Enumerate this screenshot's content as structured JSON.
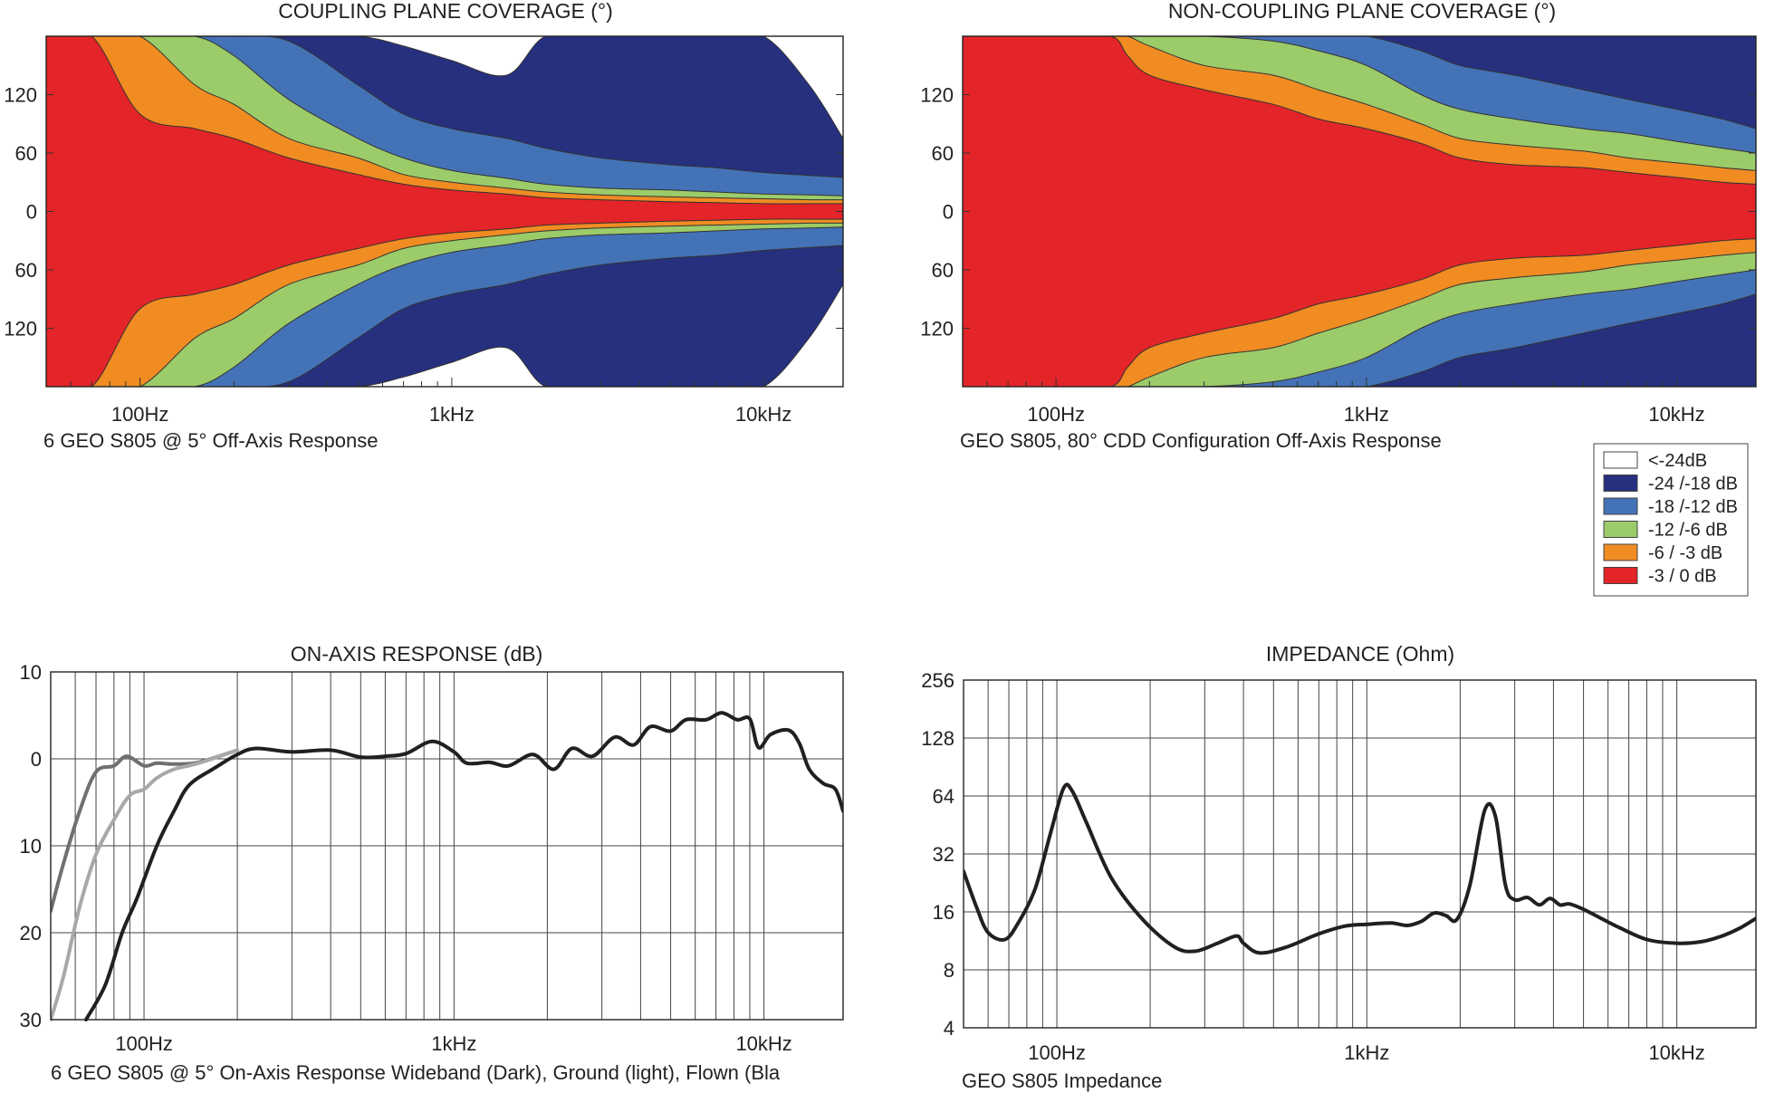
{
  "colors": {
    "white": "#ffffff",
    "navy": "#26307f",
    "blue": "#4472b7",
    "green": "#9ccb69",
    "orange": "#f08c22",
    "red": "#e32428",
    "curve_dark": "#231f20",
    "curve_mid": "#707070",
    "curve_light": "#a8a8a8",
    "grid": "#444444"
  },
  "chart_data": [
    {
      "type": "heatmap",
      "title": "COUPLING PLANE COVERAGE (°)",
      "caption": "6 GEO S805 @ 5°  Off-Axis Response",
      "x_scale": "log",
      "x_range_hz": [
        50,
        18000
      ],
      "xticks": [
        {
          "hz": 100,
          "label": "100Hz"
        },
        {
          "hz": 1000,
          "label": "1kHz"
        },
        {
          "hz": 10000,
          "label": "10kHz"
        }
      ],
      "y_range_deg": [
        -180,
        180
      ],
      "yticks": [
        {
          "deg": 120,
          "label": "120"
        },
        {
          "deg": 60,
          "label": "60"
        },
        {
          "deg": 0,
          "label": "0"
        },
        {
          "deg": -60,
          "label": "60"
        },
        {
          "deg": -120,
          "label": "120"
        }
      ],
      "contours": {
        "freq_hz": [
          50,
          70,
          100,
          150,
          200,
          300,
          500,
          700,
          1000,
          1500,
          2000,
          3000,
          5000,
          7000,
          10000,
          14000,
          18000
        ],
        "bands": [
          {
            "name": "-6 / -3 dB",
            "deg": [
              180,
              180,
              100,
              85,
              75,
              55,
              38,
              28,
              22,
              18,
              14,
              12,
              10,
              9,
              8,
              8,
              8
            ]
          },
          {
            "name": "-12 /-6 dB",
            "deg": [
              180,
              180,
              180,
              130,
              110,
              75,
              55,
              38,
              30,
              24,
              20,
              17,
              15,
              14,
              13,
              12,
              12
            ]
          },
          {
            "name": "-18 /-12 dB",
            "deg": [
              180,
              180,
              180,
              180,
              160,
              115,
              75,
              55,
              42,
              34,
              28,
              24,
              22,
              20,
              18,
              17,
              16
            ]
          },
          {
            "name": "-24 /-18 dB",
            "deg": [
              180,
              180,
              180,
              180,
              180,
              175,
              130,
              100,
              85,
              75,
              65,
              55,
              48,
              45,
              40,
              37,
              35
            ]
          },
          {
            "name": "<-24dB",
            "deg": [
              180,
              180,
              180,
              180,
              180,
              180,
              180,
              170,
              155,
              140,
              180,
              180,
              180,
              180,
              180,
              130,
              75
            ]
          }
        ]
      }
    },
    {
      "type": "heatmap",
      "title": "NON-COUPLING PLANE COVERAGE (°)",
      "caption": "GEO S805, 80°  CDD Configuration Off-Axis Response",
      "x_scale": "log",
      "x_range_hz": [
        50,
        18000
      ],
      "xticks": [
        {
          "hz": 100,
          "label": "100Hz"
        },
        {
          "hz": 1000,
          "label": "1kHz"
        },
        {
          "hz": 10000,
          "label": "10kHz"
        }
      ],
      "y_range_deg": [
        -180,
        180
      ],
      "yticks": [
        {
          "deg": 120,
          "label": "120"
        },
        {
          "deg": 60,
          "label": "60"
        },
        {
          "deg": 0,
          "label": "0"
        },
        {
          "deg": -60,
          "label": "60"
        },
        {
          "deg": -120,
          "label": "120"
        }
      ],
      "contours": {
        "freq_hz": [
          50,
          100,
          150,
          170,
          200,
          300,
          500,
          700,
          1000,
          1500,
          2000,
          3000,
          5000,
          7000,
          10000,
          14000,
          18000
        ],
        "bands": [
          {
            "name": "-6 / -3 dB",
            "deg": [
              180,
              180,
              180,
              160,
              140,
              125,
              110,
              95,
              85,
              70,
              55,
              48,
              45,
              40,
              35,
              30,
              28
            ]
          },
          {
            "name": "-12 /-6 dB",
            "deg": [
              180,
              180,
              180,
              180,
              170,
              150,
              140,
              125,
              110,
              90,
              75,
              68,
              62,
              55,
              50,
              45,
              42
            ]
          },
          {
            "name": "-18 /-12 dB",
            "deg": [
              180,
              180,
              180,
              180,
              180,
              180,
              175,
              165,
              150,
              120,
              105,
              95,
              85,
              80,
              72,
              65,
              60
            ]
          },
          {
            "name": "-24 /-18 dB",
            "deg": [
              180,
              180,
              180,
              180,
              180,
              180,
              180,
              180,
              180,
              165,
              150,
              140,
              125,
              115,
              105,
              95,
              85
            ]
          }
        ]
      }
    },
    {
      "type": "line",
      "title": "ON-AXIS RESPONSE (dB)",
      "caption": "6 GEO S805 @ 5°  On-Axis Response Wideband (Dark), Ground (light), Flown (Bla",
      "x_scale": "log",
      "x_range_hz": [
        50,
        18000
      ],
      "xticks": [
        {
          "hz": 100,
          "label": "100Hz"
        },
        {
          "hz": 1000,
          "label": "1kHz"
        },
        {
          "hz": 10000,
          "label": "10kHz"
        }
      ],
      "y_range": [
        -30,
        10
      ],
      "yticks": [
        {
          "v": 10,
          "label": "10"
        },
        {
          "v": 0,
          "label": "0"
        },
        {
          "v": -10,
          "label": "10"
        },
        {
          "v": -20,
          "label": "20"
        },
        {
          "v": -30,
          "label": "30"
        }
      ],
      "series": [
        {
          "color_key": "curve_mid",
          "points": [
            [
              50,
              -17.5
            ],
            [
              55,
              -12
            ],
            [
              62,
              -6
            ],
            [
              70,
              -1.5
            ],
            [
              80,
              -0.8
            ],
            [
              88,
              0.3
            ],
            [
              100,
              -0.8
            ],
            [
              110,
              -0.5
            ],
            [
              125,
              -0.6
            ],
            [
              150,
              -0.4
            ],
            [
              200,
              1
            ]
          ]
        },
        {
          "color_key": "curve_light",
          "points": [
            [
              50,
              -30
            ],
            [
              55,
              -25
            ],
            [
              62,
              -17
            ],
            [
              70,
              -11
            ],
            [
              80,
              -7
            ],
            [
              90,
              -4.2
            ],
            [
              100,
              -3.5
            ],
            [
              110,
              -2.2
            ],
            [
              125,
              -1.2
            ],
            [
              150,
              -0.5
            ],
            [
              200,
              1
            ]
          ]
        },
        {
          "color_key": "curve_dark",
          "points": [
            [
              65,
              -30
            ],
            [
              75,
              -26
            ],
            [
              85,
              -20
            ],
            [
              95,
              -16
            ],
            [
              110,
              -10
            ],
            [
              125,
              -6
            ],
            [
              140,
              -3
            ],
            [
              170,
              -1
            ],
            [
              200,
              0.5
            ],
            [
              230,
              1.2
            ],
            [
              300,
              0.8
            ],
            [
              400,
              1
            ],
            [
              500,
              0.2
            ],
            [
              600,
              0.3
            ],
            [
              700,
              0.6
            ],
            [
              850,
              2
            ],
            [
              1000,
              0.8
            ],
            [
              1100,
              -0.5
            ],
            [
              1300,
              -0.4
            ],
            [
              1500,
              -0.8
            ],
            [
              1800,
              0.5
            ],
            [
              2100,
              -1.2
            ],
            [
              2400,
              1.2
            ],
            [
              2800,
              0.3
            ],
            [
              3300,
              2.5
            ],
            [
              3800,
              1.6
            ],
            [
              4300,
              3.7
            ],
            [
              5000,
              3.2
            ],
            [
              5600,
              4.5
            ],
            [
              6500,
              4.5
            ],
            [
              7300,
              5.3
            ],
            [
              8200,
              4.5
            ],
            [
              9000,
              4.6
            ],
            [
              9600,
              1.3
            ],
            [
              10500,
              2.8
            ],
            [
              12000,
              3.3
            ],
            [
              13000,
              1.8
            ],
            [
              14000,
              -1.2
            ],
            [
              15500,
              -2.8
            ],
            [
              17000,
              -3.5
            ],
            [
              18000,
              -6
            ]
          ]
        }
      ]
    },
    {
      "type": "line",
      "title": "IMPEDANCE (Ohm)",
      "caption": "GEO S805 Impedance",
      "x_scale": "log",
      "y_scale": "log2",
      "x_range_hz": [
        50,
        18000
      ],
      "xticks": [
        {
          "hz": 100,
          "label": "100Hz"
        },
        {
          "hz": 1000,
          "label": "1kHz"
        },
        {
          "hz": 10000,
          "label": "10kHz"
        }
      ],
      "y_range": [
        4,
        256
      ],
      "yticks": [
        {
          "v": 256,
          "label": "256"
        },
        {
          "v": 128,
          "label": "128"
        },
        {
          "v": 64,
          "label": "64"
        },
        {
          "v": 32,
          "label": "32"
        },
        {
          "v": 16,
          "label": "16"
        },
        {
          "v": 8,
          "label": "8"
        },
        {
          "v": 4,
          "label": "4"
        }
      ],
      "series": [
        {
          "color_key": "curve_dark",
          "points": [
            [
              50,
              26
            ],
            [
              55,
              17
            ],
            [
              60,
              12.5
            ],
            [
              68,
              11.5
            ],
            [
              75,
              14
            ],
            [
              85,
              21
            ],
            [
              95,
              40
            ],
            [
              105,
              70
            ],
            [
              112,
              68
            ],
            [
              125,
              46
            ],
            [
              150,
              24
            ],
            [
              190,
              14.5
            ],
            [
              240,
              10.5
            ],
            [
              280,
              10
            ],
            [
              330,
              11
            ],
            [
              380,
              12
            ],
            [
              400,
              11
            ],
            [
              450,
              9.8
            ],
            [
              550,
              10.5
            ],
            [
              700,
              12.3
            ],
            [
              850,
              13.5
            ],
            [
              1000,
              13.8
            ],
            [
              1200,
              14
            ],
            [
              1350,
              13.6
            ],
            [
              1500,
              14.3
            ],
            [
              1650,
              15.8
            ],
            [
              1800,
              15.3
            ],
            [
              1950,
              14.6
            ],
            [
              2150,
              22
            ],
            [
              2400,
              54
            ],
            [
              2600,
              50
            ],
            [
              2800,
              22
            ],
            [
              3000,
              18.5
            ],
            [
              3300,
              19
            ],
            [
              3600,
              17.4
            ],
            [
              3900,
              18.8
            ],
            [
              4200,
              17.4
            ],
            [
              4500,
              17.6
            ],
            [
              5000,
              16.5
            ],
            [
              5700,
              14.8
            ],
            [
              6500,
              13.3
            ],
            [
              8000,
              11.5
            ],
            [
              10000,
              11
            ],
            [
              12000,
              11.2
            ],
            [
              14000,
              12
            ],
            [
              16000,
              13.2
            ],
            [
              18000,
              14.8
            ]
          ]
        }
      ]
    }
  ],
  "legend": {
    "items": [
      {
        "label": "<-24dB",
        "color": "#ffffff"
      },
      {
        "label": "-24 /-18 dB",
        "color": "#26307f"
      },
      {
        "label": "-18 /-12 dB",
        "color": "#4472b7"
      },
      {
        "label": "-12 /-6 dB",
        "color": "#9ccb69"
      },
      {
        "label": "-6 / -3 dB",
        "color": "#f08c22"
      },
      {
        "label": "-3 / 0 dB",
        "color": "#e32428"
      }
    ]
  }
}
